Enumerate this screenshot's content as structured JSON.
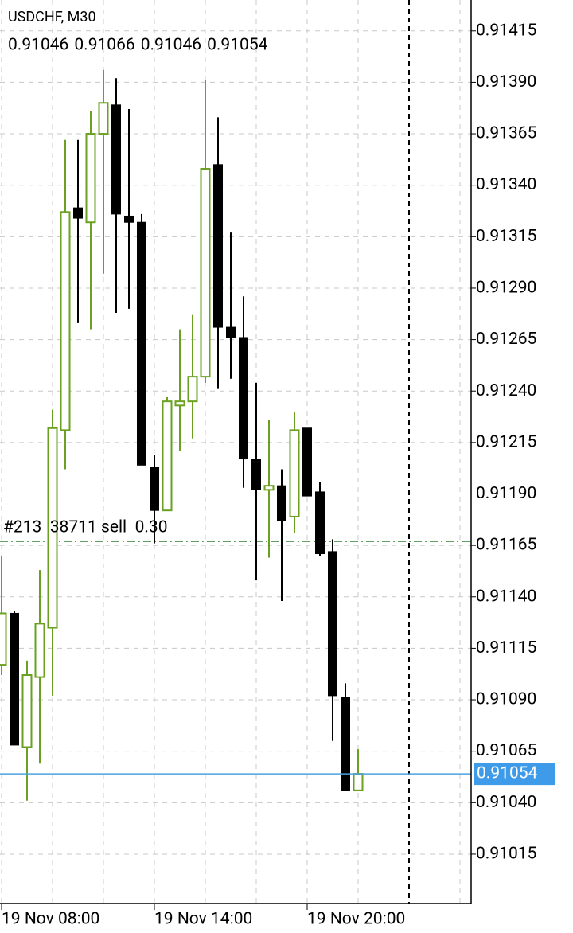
{
  "chart_data": {
    "type": "candlestick",
    "title": "USDCHF, M30",
    "header_values": [
      0.91046,
      0.91066,
      0.91046,
      0.91054
    ],
    "categories": [
      "19 Nov 08:00",
      null,
      null,
      null,
      null,
      null,
      null,
      null,
      null,
      null,
      null,
      null,
      "19 Nov 14:00",
      null,
      null,
      null,
      null,
      null,
      null,
      null,
      null,
      null,
      null,
      null,
      "19 Nov 20:00",
      null,
      null,
      null,
      null
    ],
    "open": [
      0.91107,
      0.91132,
      0.91067,
      0.91101,
      0.91125,
      0.91221,
      0.91329,
      0.91322,
      0.91365,
      0.91379,
      0.91325,
      0.91322,
      0.91203,
      0.91182,
      0.91233,
      0.91235,
      0.91247,
      0.9135,
      0.91271,
      0.91266,
      0.91207,
      0.91192,
      0.91194,
      0.91179,
      0.91222,
      0.91191,
      0.91162,
      0.91091,
      0.91046
    ],
    "high": [
      0.9116,
      0.91133,
      0.91109,
      0.91153,
      0.91231,
      0.91362,
      0.91362,
      0.91376,
      0.91396,
      0.91392,
      0.91377,
      0.91326,
      0.91209,
      0.91237,
      0.9127,
      0.91277,
      0.91391,
      0.91373,
      0.91317,
      0.91286,
      0.91244,
      0.91226,
      0.91202,
      0.9123,
      0.91222,
      0.91196,
      0.91168,
      0.91098,
      0.91066
    ],
    "low": [
      0.91102,
      0.91068,
      0.91041,
      0.91059,
      0.91092,
      0.91202,
      0.91273,
      0.9127,
      0.91297,
      0.91278,
      0.9128,
      0.91204,
      0.91166,
      0.91182,
      0.91211,
      0.91217,
      0.91244,
      0.91241,
      0.91246,
      0.91193,
      0.91148,
      0.91159,
      0.91138,
      0.91171,
      0.91189,
      0.9116,
      0.9107,
      0.91046,
      0.91046
    ],
    "close": [
      0.91132,
      0.91068,
      0.91102,
      0.91127,
      0.91222,
      0.91327,
      0.91324,
      0.91365,
      0.9138,
      0.91326,
      0.91322,
      0.91204,
      0.91182,
      0.91235,
      0.91235,
      0.91247,
      0.91348,
      0.91271,
      0.91266,
      0.91207,
      0.91192,
      0.91194,
      0.91177,
      0.91221,
      0.91189,
      0.91161,
      0.91092,
      0.91046,
      0.91054
    ],
    "up_color": "#6aa121",
    "down_color": "#000000",
    "ylim": [
      0.90991,
      0.9143
    ],
    "yticks": [
      0.91015,
      {
        "value": 0.9104,
        "label": "0.91040"
      },
      0.91065,
      {
        "value": 0.9109,
        "label": "0.91090"
      },
      0.91115,
      {
        "value": 0.9114,
        "label": "0.91140"
      },
      0.91165,
      {
        "value": 0.9119,
        "label": "0.91190"
      },
      0.91215,
      {
        "value": 0.9124,
        "label": "0.91240"
      },
      0.91265,
      {
        "value": 0.9129,
        "label": "0.91290"
      },
      0.91315,
      {
        "value": 0.9134,
        "label": "0.91340"
      },
      0.91365,
      {
        "value": 0.9139,
        "label": "0.91390"
      },
      0.91415
    ],
    "grid": true,
    "order_line": {
      "label": "#213  38711 sell  0.30",
      "price": 0.91167,
      "color": "#2e7d32"
    },
    "bid_line": {
      "price": 0.91054,
      "color": "#4aa3df",
      "label_color": "#3d9be9"
    }
  }
}
